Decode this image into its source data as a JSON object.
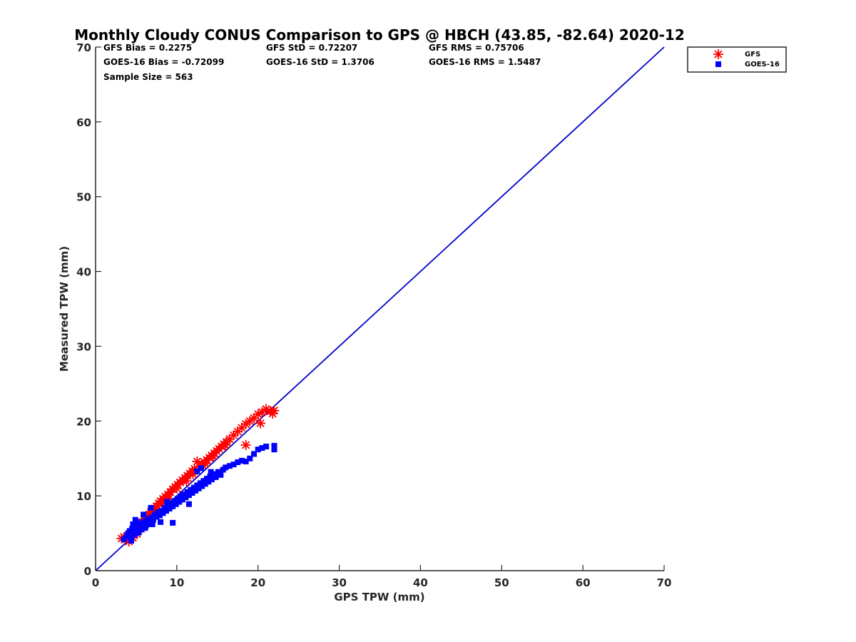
{
  "chart_data": {
    "type": "scatter",
    "title": "Monthly Cloudy CONUS Comparison to GPS @ HBCH (43.85, -82.64) 2020-12",
    "xlabel": "GPS TPW (mm)",
    "ylabel": "Measured TPW (mm)",
    "xlim": [
      0,
      70
    ],
    "ylim": [
      0,
      70
    ],
    "xticks": [
      "0",
      "10",
      "20",
      "30",
      "40",
      "50",
      "60",
      "70"
    ],
    "yticks": [
      "0",
      "10",
      "20",
      "30",
      "40",
      "50",
      "60",
      "70"
    ],
    "grid": false,
    "legend_position": "top-right-outside",
    "reference_line": {
      "x": [
        0,
        70
      ],
      "y": [
        0,
        70
      ],
      "color": "#0000cc"
    },
    "stats": {
      "gfs_bias": "GFS Bias = 0.2275",
      "gfs_std": "GFS StD = 0.72207",
      "gfs_rms": "GFS RMS = 0.75706",
      "goes_bias": "GOES-16 Bias = -0.72099",
      "goes_std": "GOES-16 StD = 1.3706",
      "goes_rms": "GOES-16 RMS = 1.5487",
      "sample_size": "Sample Size = 563"
    },
    "series": [
      {
        "name": "GFS",
        "marker": "asterisk",
        "color": "#ff0000",
        "x": [
          3.2,
          3.5,
          3.8,
          4.0,
          4.2,
          4.4,
          4.6,
          4.8,
          5.0,
          5.2,
          5.4,
          5.6,
          5.8,
          6.0,
          6.2,
          6.4,
          6.6,
          6.8,
          7.0,
          7.2,
          7.5,
          7.8,
          8.0,
          8.3,
          8.6,
          8.9,
          9.2,
          9.5,
          9.8,
          10.1,
          10.4,
          10.7,
          11.0,
          11.3,
          11.6,
          11.9,
          12.2,
          12.5,
          12.8,
          13.1,
          13.4,
          13.7,
          14.0,
          14.3,
          14.6,
          14.9,
          15.2,
          15.5,
          15.8,
          16.1,
          16.5,
          17.0,
          17.5,
          18.0,
          18.5,
          19.0,
          19.5,
          20.0,
          20.5,
          21.0,
          21.5,
          22.0,
          4.1,
          4.6,
          5.1,
          5.6,
          6.1,
          7.2,
          8.2,
          9.0,
          10.0,
          11.2,
          12.0,
          13.5,
          14.5,
          16.0,
          18.5,
          20.3,
          21.8
        ],
        "y": [
          4.3,
          4.5,
          4.2,
          4.6,
          4.8,
          5.0,
          5.2,
          5.3,
          5.6,
          5.9,
          6.1,
          6.3,
          6.5,
          6.8,
          7.0,
          7.3,
          7.5,
          7.8,
          8.0,
          8.3,
          8.6,
          9.0,
          9.3,
          9.6,
          9.9,
          10.2,
          10.5,
          10.9,
          11.2,
          11.5,
          11.8,
          12.1,
          12.4,
          12.7,
          13.0,
          13.3,
          13.6,
          14.6,
          13.9,
          14.2,
          14.5,
          14.8,
          15.1,
          15.4,
          15.7,
          16.0,
          16.3,
          16.6,
          16.9,
          17.2,
          17.6,
          18.1,
          18.6,
          19.1,
          19.6,
          20.0,
          20.4,
          20.9,
          21.2,
          21.6,
          21.3,
          21.4,
          3.9,
          4.4,
          4.9,
          5.6,
          6.4,
          7.8,
          8.9,
          9.6,
          11.0,
          12.0,
          12.9,
          14.3,
          15.3,
          16.8,
          16.8,
          19.7,
          21.0
        ]
      },
      {
        "name": "GOES-16",
        "marker": "square",
        "color": "#0000ff",
        "x": [
          3.5,
          3.8,
          4.0,
          4.2,
          4.3,
          4.5,
          4.6,
          4.8,
          5.0,
          5.1,
          5.3,
          5.5,
          5.6,
          5.8,
          6.0,
          6.1,
          6.3,
          6.5,
          6.7,
          6.9,
          7.1,
          7.3,
          7.5,
          7.7,
          7.9,
          8.1,
          8.3,
          8.5,
          8.7,
          8.9,
          9.1,
          9.3,
          9.5,
          9.7,
          9.9,
          10.1,
          10.3,
          10.5,
          10.7,
          10.9,
          11.1,
          11.3,
          11.5,
          11.7,
          11.9,
          12.1,
          12.3,
          12.5,
          12.7,
          12.9,
          13.1,
          13.3,
          13.5,
          13.7,
          13.9,
          14.1,
          14.3,
          14.5,
          14.8,
          15.1,
          15.4,
          15.7,
          16.0,
          16.5,
          17.0,
          17.5,
          18.0,
          18.5,
          19.0,
          19.5,
          20.0,
          20.5,
          21.0,
          22.0,
          22.0,
          4.4,
          5.2,
          6.2,
          7.0,
          8.0,
          9.5,
          10.6,
          12.5,
          13.0,
          14.2,
          4.9,
          5.9,
          6.8,
          8.8,
          11.5
        ],
        "y": [
          4.2,
          4.6,
          5.0,
          5.3,
          4.4,
          5.6,
          6.2,
          4.8,
          5.9,
          6.5,
          5.1,
          6.3,
          5.5,
          6.0,
          6.6,
          5.7,
          6.2,
          6.9,
          6.4,
          7.1,
          6.8,
          7.5,
          7.2,
          7.8,
          7.4,
          8.0,
          7.7,
          8.4,
          8.0,
          8.7,
          8.3,
          9.0,
          8.6,
          9.3,
          8.9,
          9.6,
          9.2,
          9.9,
          9.5,
          10.2,
          9.8,
          10.5,
          10.1,
          10.8,
          10.4,
          11.1,
          10.7,
          11.4,
          11.0,
          11.7,
          11.3,
          12.0,
          11.6,
          12.3,
          11.9,
          12.6,
          12.2,
          12.9,
          12.5,
          13.2,
          12.8,
          13.5,
          13.8,
          14.0,
          14.2,
          14.5,
          14.7,
          14.6,
          15.0,
          15.6,
          16.2,
          16.4,
          16.6,
          16.2,
          16.7,
          4.0,
          5.2,
          6.0,
          6.2,
          6.5,
          6.4,
          10.0,
          13.3,
          13.7,
          13.2,
          6.8,
          7.5,
          8.4,
          9.2,
          8.9
        ]
      }
    ]
  }
}
